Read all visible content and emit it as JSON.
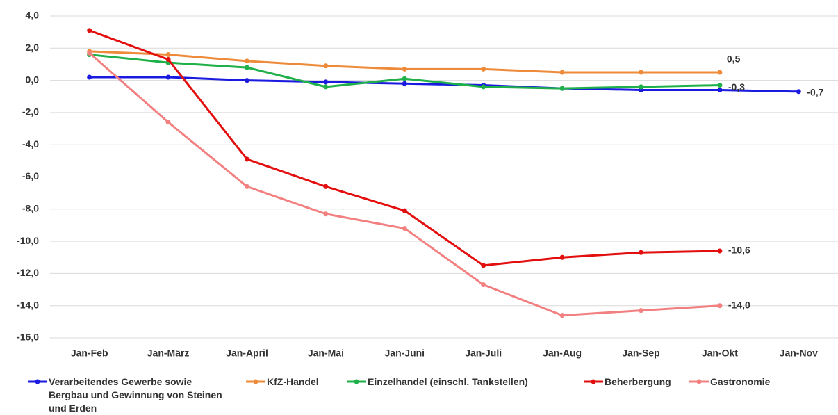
{
  "chart_data": {
    "type": "line",
    "categories": [
      "Jan-Feb",
      "Jan-März",
      "Jan-April",
      "Jan-Mai",
      "Jan-Juni",
      "Jan-Juli",
      "Jan-Aug",
      "Jan-Sep",
      "Jan-Okt",
      "Jan-Nov"
    ],
    "ylim": [
      -16,
      4
    ],
    "yticks": [
      {
        "value": 4,
        "label": "4,0"
      },
      {
        "value": 2,
        "label": "2,0"
      },
      {
        "value": 0,
        "label": "0,0"
      },
      {
        "value": -2,
        "label": "-2,0"
      },
      {
        "value": -4,
        "label": "-4,0"
      },
      {
        "value": -6,
        "label": "-6,0"
      },
      {
        "value": -8,
        "label": "-8,0"
      },
      {
        "value": -10,
        "label": "-10,0"
      },
      {
        "value": -12,
        "label": "-12,0"
      },
      {
        "value": -14,
        "label": "-14,0"
      },
      {
        "value": -16,
        "label": "-16,0"
      }
    ],
    "grid": true,
    "legend": "bottom",
    "series": [
      {
        "name": "Verarbeitendes Gewerbe sowie Bergbau und Gewinnung von Steinen und Erden",
        "color": "#1a1ae0",
        "values": [
          0.2,
          0.2,
          0.0,
          -0.1,
          -0.2,
          -0.3,
          -0.5,
          -0.6,
          -0.6,
          -0.7
        ],
        "value_labels": [
          null,
          null,
          null,
          null,
          null,
          null,
          null,
          null,
          null,
          "-0,7"
        ]
      },
      {
        "name": "KfZ-Handel",
        "color": "#ed8b3a",
        "values": [
          1.8,
          1.6,
          1.2,
          0.9,
          0.7,
          0.7,
          0.5,
          0.5,
          0.5,
          null
        ],
        "value_labels": [
          null,
          null,
          null,
          null,
          null,
          null,
          null,
          null,
          "0,5",
          null
        ]
      },
      {
        "name": "Einzelhandel (einschl. Tankstellen)",
        "color": "#1fb04a",
        "values": [
          1.6,
          1.1,
          0.8,
          -0.4,
          0.1,
          -0.4,
          -0.5,
          -0.4,
          -0.3,
          null
        ],
        "value_labels": [
          null,
          null,
          null,
          null,
          null,
          null,
          null,
          null,
          "-0,3",
          null
        ]
      },
      {
        "name": "Beherbergung",
        "color": "#e30e0e",
        "values": [
          3.1,
          1.3,
          -4.9,
          -6.6,
          -8.1,
          -11.5,
          -11.0,
          -10.7,
          -10.6,
          null
        ],
        "value_labels": [
          null,
          null,
          null,
          null,
          null,
          null,
          null,
          null,
          "-10,6",
          null
        ]
      },
      {
        "name": "Gastronomie",
        "color": "#f28080",
        "values": [
          1.7,
          -2.6,
          -6.6,
          -8.3,
          -9.2,
          -12.7,
          -14.6,
          -14.3,
          -14.0,
          null
        ],
        "value_labels": [
          null,
          null,
          null,
          null,
          null,
          null,
          null,
          null,
          "-14,0",
          null
        ]
      }
    ]
  }
}
